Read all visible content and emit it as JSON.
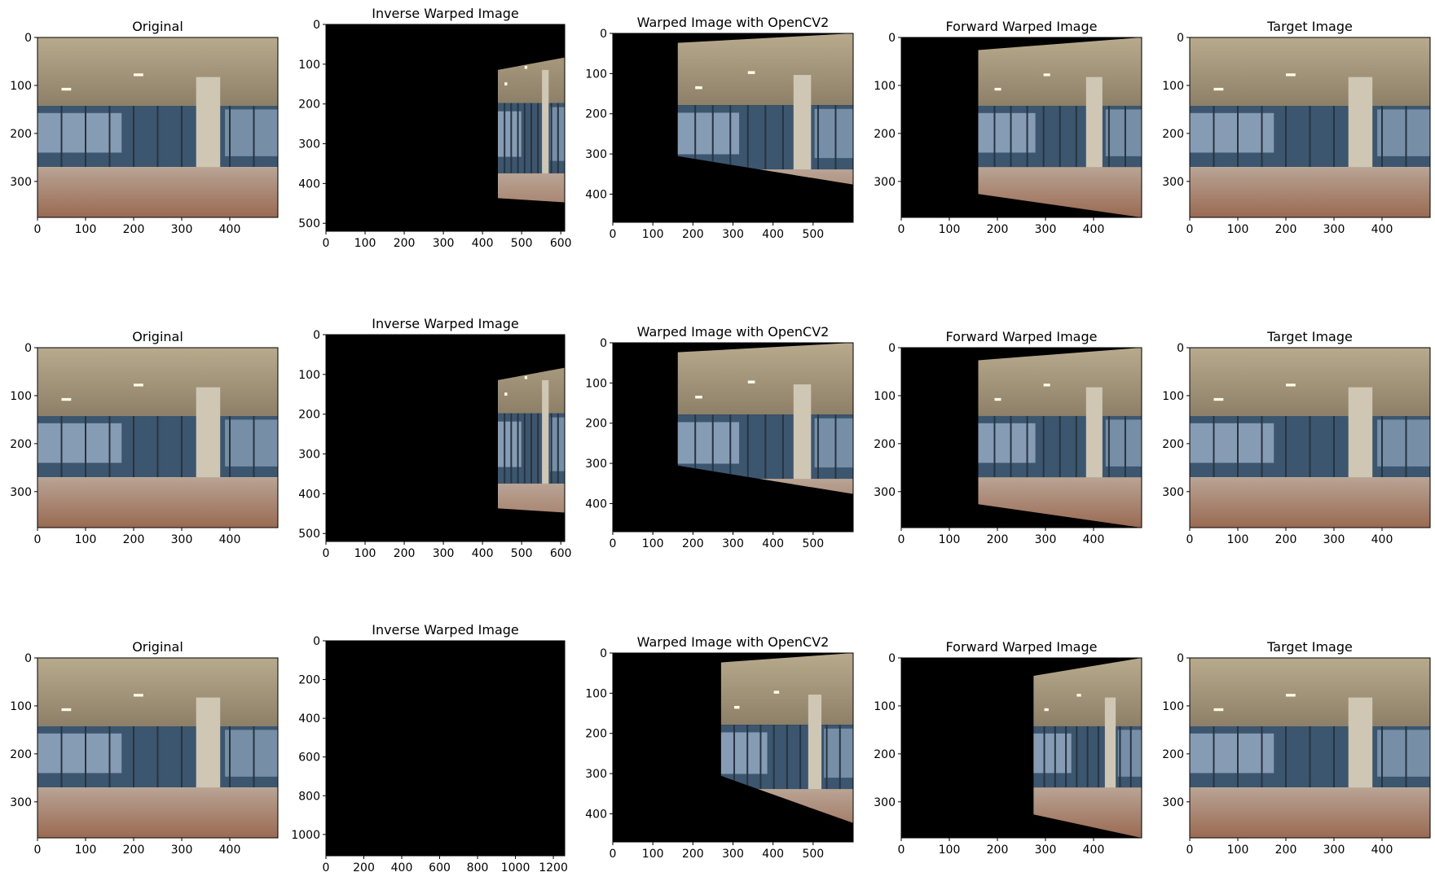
{
  "chart_data": {
    "type": "image-grid",
    "rows": [
      {
        "panels": [
          {
            "title": "Original",
            "content": "photo",
            "x_ticks": [
              "0",
              "100",
              "200",
              "300",
              "400"
            ],
            "y_ticks": [
              "0",
              "100",
              "200",
              "300"
            ],
            "x_range": [
              0,
              500
            ],
            "y_range": [
              375,
              0
            ]
          },
          {
            "title": "Inverse Warped Image",
            "content": "warp-right-small",
            "x_ticks": [
              "0",
              "100",
              "200",
              "300",
              "400",
              "500",
              "600"
            ],
            "y_ticks": [
              "0",
              "100",
              "200",
              "300",
              "400",
              "500"
            ],
            "x_range": [
              0,
              610
            ],
            "y_range": [
              520,
              0
            ]
          },
          {
            "title": "Warped Image with OpenCV2",
            "content": "warp-mid",
            "x_ticks": [
              "0",
              "100",
              "200",
              "300",
              "400",
              "500"
            ],
            "y_ticks": [
              "0",
              "100",
              "200",
              "300",
              "400"
            ],
            "x_range": [
              0,
              600
            ],
            "y_range": [
              470,
              0
            ]
          },
          {
            "title": "Forward Warped Image",
            "content": "warp-forward",
            "x_ticks": [
              "0",
              "100",
              "200",
              "300",
              "400"
            ],
            "y_ticks": [
              "0",
              "100",
              "200",
              "300"
            ],
            "x_range": [
              0,
              500
            ],
            "y_range": [
              375,
              0
            ]
          },
          {
            "title": "Target Image",
            "content": "photo",
            "x_ticks": [
              "0",
              "100",
              "200",
              "300",
              "400"
            ],
            "y_ticks": [
              "0",
              "100",
              "200",
              "300"
            ],
            "x_range": [
              0,
              500
            ],
            "y_range": [
              375,
              0
            ]
          }
        ]
      },
      {
        "panels": [
          {
            "title": "Original",
            "content": "photo",
            "x_ticks": [
              "0",
              "100",
              "200",
              "300",
              "400"
            ],
            "y_ticks": [
              "0",
              "100",
              "200",
              "300"
            ],
            "x_range": [
              0,
              500
            ],
            "y_range": [
              375,
              0
            ]
          },
          {
            "title": "Inverse Warped Image",
            "content": "warp-right-small",
            "x_ticks": [
              "0",
              "100",
              "200",
              "300",
              "400",
              "500",
              "600"
            ],
            "y_ticks": [
              "0",
              "100",
              "200",
              "300",
              "400",
              "500"
            ],
            "x_range": [
              0,
              610
            ],
            "y_range": [
              520,
              0
            ]
          },
          {
            "title": "Warped Image with OpenCV2",
            "content": "warp-mid",
            "x_ticks": [
              "0",
              "100",
              "200",
              "300",
              "400",
              "500"
            ],
            "y_ticks": [
              "0",
              "100",
              "200",
              "300",
              "400"
            ],
            "x_range": [
              0,
              600
            ],
            "y_range": [
              470,
              0
            ]
          },
          {
            "title": "Forward Warped Image",
            "content": "warp-forward",
            "x_ticks": [
              "0",
              "100",
              "200",
              "300",
              "400"
            ],
            "y_ticks": [
              "0",
              "100",
              "200",
              "300"
            ],
            "x_range": [
              0,
              500
            ],
            "y_range": [
              375,
              0
            ]
          },
          {
            "title": "Target Image",
            "content": "photo",
            "x_ticks": [
              "0",
              "100",
              "200",
              "300",
              "400"
            ],
            "y_ticks": [
              "0",
              "100",
              "200",
              "300"
            ],
            "x_range": [
              0,
              500
            ],
            "y_range": [
              375,
              0
            ]
          }
        ]
      },
      {
        "panels": [
          {
            "title": "Original",
            "content": "photo",
            "x_ticks": [
              "0",
              "100",
              "200",
              "300",
              "400"
            ],
            "y_ticks": [
              "0",
              "100",
              "200",
              "300"
            ],
            "x_range": [
              0,
              500
            ],
            "y_range": [
              375,
              0
            ]
          },
          {
            "title": "Inverse Warped Image",
            "content": "black",
            "x_ticks": [
              "0",
              "200",
              "400",
              "600",
              "800",
              "1000",
              "1200"
            ],
            "y_ticks": [
              "0",
              "200",
              "400",
              "600",
              "800",
              "1000"
            ],
            "x_range": [
              0,
              1260
            ],
            "y_range": [
              1110,
              0
            ]
          },
          {
            "title": "Warped Image with OpenCV2",
            "content": "warp-mid-deep",
            "x_ticks": [
              "0",
              "100",
              "200",
              "300",
              "400",
              "500"
            ],
            "y_ticks": [
              "0",
              "100",
              "200",
              "300",
              "400"
            ],
            "x_range": [
              0,
              600
            ],
            "y_range": [
              470,
              0
            ]
          },
          {
            "title": "Forward Warped Image",
            "content": "warp-forward-deep",
            "x_ticks": [
              "0",
              "100",
              "200",
              "300",
              "400"
            ],
            "y_ticks": [
              "0",
              "100",
              "200",
              "300"
            ],
            "x_range": [
              0,
              500
            ],
            "y_range": [
              375,
              0
            ]
          },
          {
            "title": "Target Image",
            "content": "photo",
            "x_ticks": [
              "0",
              "100",
              "200",
              "300",
              "400"
            ],
            "y_ticks": [
              "0",
              "100",
              "200",
              "300"
            ],
            "x_range": [
              0,
              500
            ],
            "y_range": [
              375,
              0
            ]
          }
        ]
      }
    ]
  },
  "colors": {
    "ceiling": "#b8aa8c",
    "ceiling_dark": "#8d8068",
    "glass": "#3c5670",
    "glass_light": "#9fb4cc",
    "floor": "#9a6a52",
    "floor_light": "#b9a495",
    "pillar": "#cfc6b3",
    "black": "#000000"
  }
}
